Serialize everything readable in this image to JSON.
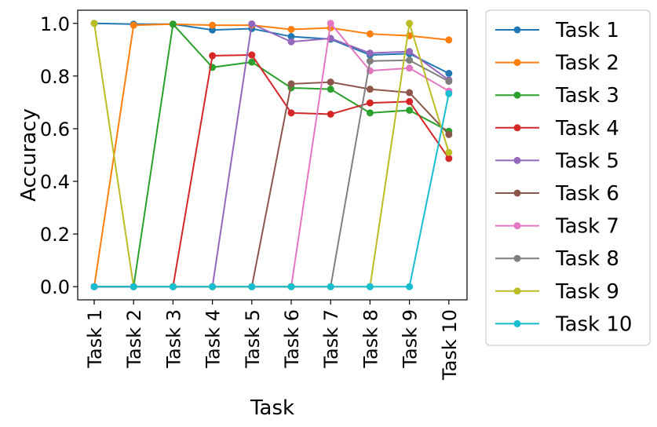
{
  "chart_data": {
    "type": "line",
    "title": "",
    "xlabel": "Task",
    "ylabel": "Accuracy",
    "categories": [
      "Task 1",
      "Task 2",
      "Task 3",
      "Task 4",
      "Task 5",
      "Task 6",
      "Task 7",
      "Task 8",
      "Task 9",
      "Task 10"
    ],
    "ylim": [
      -0.05,
      1.05
    ],
    "yticks": [
      0.0,
      0.2,
      0.4,
      0.6,
      0.8,
      1.0
    ],
    "ytick_labels": [
      "0.0",
      "0.2",
      "0.4",
      "0.6",
      "0.8",
      "1.0"
    ],
    "grid": false,
    "legend_position": "outside-right",
    "series": [
      {
        "name": "Task 1",
        "color": "#1f77b4",
        "values": [
          1.0,
          0.997,
          0.997,
          0.975,
          0.98,
          0.95,
          0.94,
          0.88,
          0.885,
          0.81
        ]
      },
      {
        "name": "Task 2",
        "color": "#ff7f0e",
        "values": [
          0.0,
          0.993,
          0.997,
          0.993,
          0.993,
          0.977,
          0.983,
          0.96,
          0.953,
          0.937
        ]
      },
      {
        "name": "Task 3",
        "color": "#2ca02c",
        "values": [
          0.0,
          0.0,
          0.997,
          0.833,
          0.853,
          0.755,
          0.75,
          0.66,
          0.67,
          0.59
        ]
      },
      {
        "name": "Task 4",
        "color": "#d62728",
        "values": [
          0.0,
          0.0,
          0.0,
          0.877,
          0.88,
          0.66,
          0.655,
          0.698,
          0.703,
          0.487
        ]
      },
      {
        "name": "Task 5",
        "color": "#9467bd",
        "values": [
          0.0,
          0.0,
          0.0,
          0.0,
          0.998,
          0.93,
          0.943,
          0.887,
          0.893,
          0.785
        ]
      },
      {
        "name": "Task 6",
        "color": "#8c564b",
        "values": [
          0.0,
          0.0,
          0.0,
          0.0,
          0.0,
          0.77,
          0.777,
          0.75,
          0.737,
          0.578
        ]
      },
      {
        "name": "Task 7",
        "color": "#e377c2",
        "values": [
          0.0,
          0.0,
          0.0,
          0.0,
          0.0,
          0.0,
          1.0,
          0.82,
          0.83,
          0.743
        ]
      },
      {
        "name": "Task 8",
        "color": "#7f7f7f",
        "values": [
          0.0,
          0.0,
          0.0,
          0.0,
          0.0,
          0.0,
          0.0,
          0.857,
          0.86,
          0.78
        ]
      },
      {
        "name": "Task 9",
        "color": "#bcbd22",
        "values": [
          1.0,
          0.0,
          0.0,
          0.0,
          0.0,
          0.0,
          0.0,
          0.0,
          1.0,
          0.51
        ]
      },
      {
        "name": "Task 10",
        "color": "#17becf",
        "values": [
          0.0,
          0.0,
          0.0,
          0.0,
          0.0,
          0.0,
          0.0,
          0.0,
          0.0,
          0.733
        ]
      }
    ]
  }
}
